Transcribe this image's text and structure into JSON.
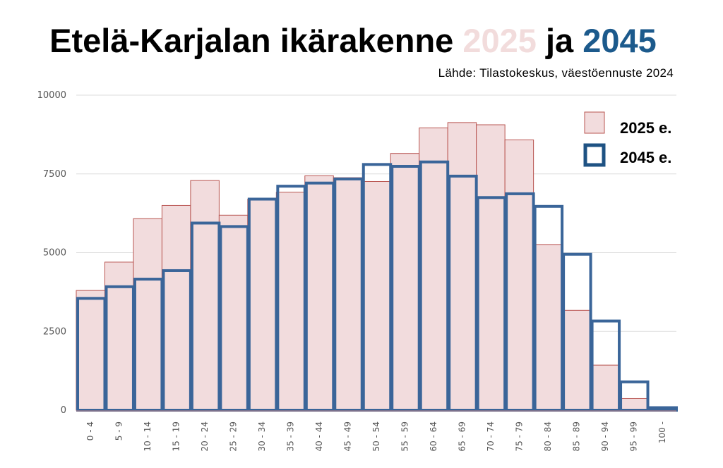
{
  "title": {
    "prefix": "Etelä-Karjalan ikärakenne ",
    "year1": "2025",
    "middle": " ja ",
    "year2": "2045",
    "year1_color": "#f2dcdc",
    "year2_color": "#1c5a8c"
  },
  "subtitle": "Lähde: Tilastokeskus, väestöennuste 2024",
  "legend": [
    {
      "label": "2025 e.",
      "style": "filled",
      "fill": "#f2dcdd",
      "stroke": "#b85450"
    },
    {
      "label": "2045 e.",
      "style": "outline",
      "stroke": "#1e5283"
    }
  ],
  "chart_data": {
    "type": "bar",
    "categories": [
      "0 - 4",
      "5 - 9",
      "10 - 14",
      "15 - 19",
      "20 - 24",
      "25 - 29",
      "30 - 34",
      "35 - 39",
      "40 - 44",
      "45 - 49",
      "50 - 54",
      "55 - 59",
      "60 - 64",
      "65 - 69",
      "70 - 74",
      "75 - 79",
      "80 - 84",
      "85 - 89",
      "90 - 94",
      "95 - 99",
      "100 -"
    ],
    "series": [
      {
        "name": "2025 e.",
        "color": "#f2dcdd",
        "stroke": "#b85450",
        "values": [
          3800,
          4700,
          6080,
          6500,
          7290,
          6190,
          6700,
          6920,
          7440,
          7380,
          7260,
          8150,
          8960,
          9130,
          9060,
          8580,
          5260,
          3170,
          1430,
          370,
          60
        ]
      },
      {
        "name": "2045 e.",
        "color": "#3a6599",
        "values": [
          3550,
          3920,
          4160,
          4430,
          5940,
          5830,
          6700,
          7110,
          7210,
          7340,
          7800,
          7740,
          7880,
          7430,
          6750,
          6870,
          6470,
          4950,
          2830,
          900,
          80
        ]
      }
    ],
    "y_ticks": [
      "0",
      "2500",
      "5000",
      "7500",
      "10000"
    ],
    "ylim": [
      0,
      10000
    ],
    "grid": true,
    "legend_position": "top-right"
  }
}
